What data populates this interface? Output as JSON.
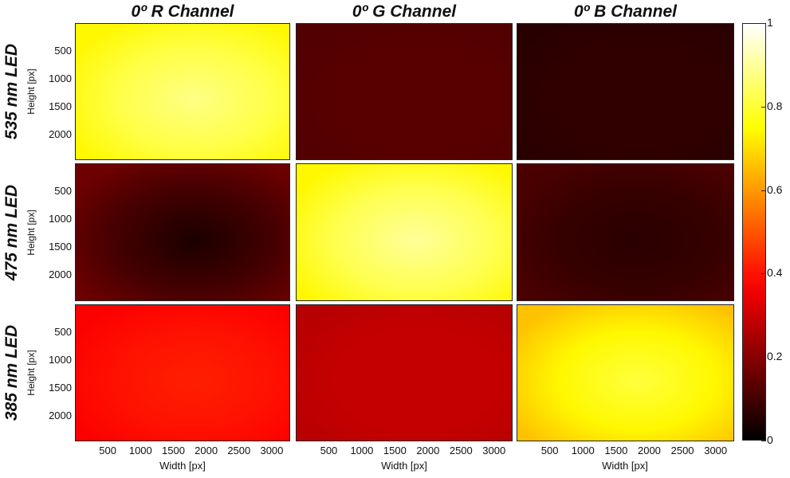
{
  "chart_data": {
    "type": "heatmap",
    "colormap": "hot",
    "columns": [
      "0º R Channel",
      "0º G Channel",
      "0º B Channel"
    ],
    "rows": [
      "535 nm LED",
      "475 nm LED",
      "385 nm LED"
    ],
    "ylabel": "Height [px]",
    "xlabel": "Width [px]",
    "yticks": [
      "500",
      "1000",
      "1500",
      "2000"
    ],
    "xticks": [
      "500",
      "1000",
      "1500",
      "2000",
      "2500",
      "3000"
    ],
    "xlim": [
      0,
      3280
    ],
    "ylim": [
      0,
      2464
    ],
    "colorbar": {
      "range": [
        0,
        1
      ],
      "ticks": [
        "0",
        "0.2",
        "0.4",
        "0.6",
        "0.8",
        "1"
      ]
    },
    "panels": [
      {
        "row": "535 nm LED",
        "column": "0º R Channel",
        "mean": 0.82,
        "center": 0.88,
        "edge": 0.74
      },
      {
        "row": "535 nm LED",
        "column": "0º G Channel",
        "mean": 0.13,
        "center": 0.13,
        "edge": 0.12
      },
      {
        "row": "535 nm LED",
        "column": "0º B Channel",
        "mean": 0.07,
        "center": 0.07,
        "edge": 0.06
      },
      {
        "row": "475 nm LED",
        "column": "0º R Channel",
        "mean": 0.1,
        "center": 0.04,
        "edge": 0.16
      },
      {
        "row": "475 nm LED",
        "column": "0º G Channel",
        "mean": 0.83,
        "center": 0.9,
        "edge": 0.74
      },
      {
        "row": "475 nm LED",
        "column": "0º B Channel",
        "mean": 0.08,
        "center": 0.06,
        "edge": 0.11
      },
      {
        "row": "385 nm LED",
        "column": "0º R Channel",
        "mean": 0.4,
        "center": 0.42,
        "edge": 0.37
      },
      {
        "row": "385 nm LED",
        "column": "0º G Channel",
        "mean": 0.29,
        "center": 0.29,
        "edge": 0.27
      },
      {
        "row": "385 nm LED",
        "column": "0º B Channel",
        "mean": 0.74,
        "center": 0.81,
        "edge": 0.66
      }
    ]
  }
}
